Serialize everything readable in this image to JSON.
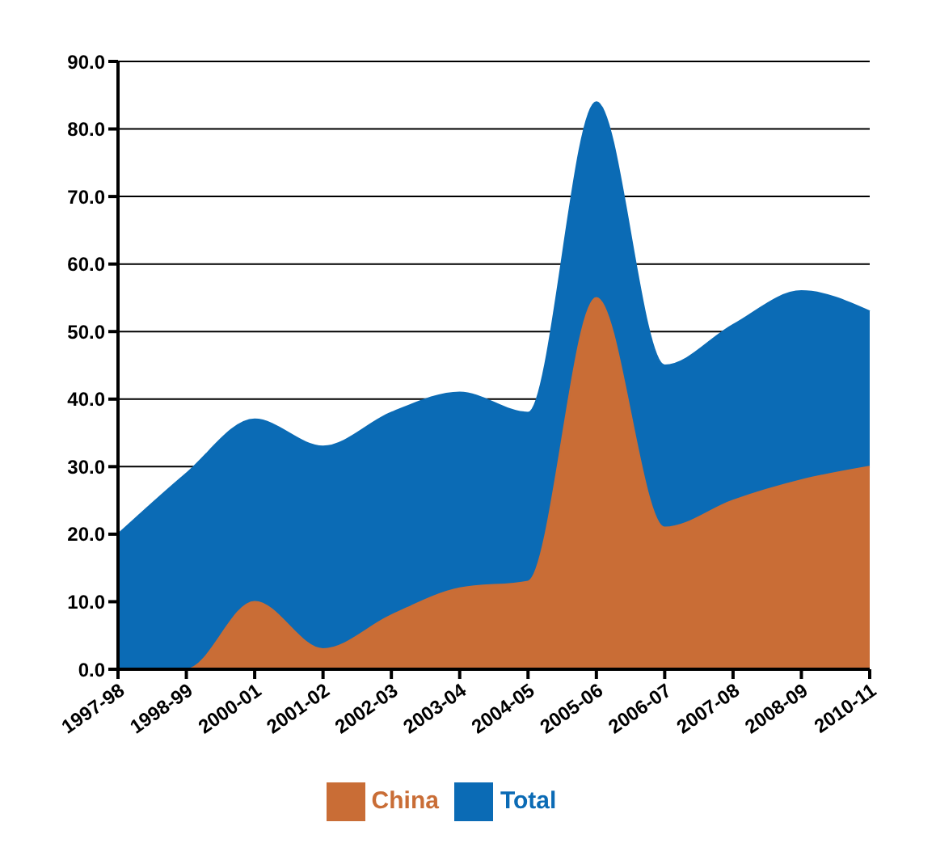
{
  "chart_data": {
    "type": "area",
    "categories": [
      "1997-98",
      "1998-99",
      "2000-01",
      "2001-02",
      "2002-03",
      "2003-04",
      "2004-05",
      "2005-06",
      "2006-07",
      "2007-08",
      "2008-09",
      "2010-11"
    ],
    "series": [
      {
        "name": "Total",
        "color": "#0b6bb5",
        "values": [
          20,
          29,
          37,
          33,
          38,
          41,
          38,
          84,
          45,
          51,
          56,
          53
        ]
      },
      {
        "name": "China",
        "color": "#c96d36",
        "values": [
          0,
          0,
          10,
          3,
          8,
          12,
          13,
          55,
          21,
          25,
          28,
          30
        ]
      }
    ],
    "ylim": [
      0,
      90
    ],
    "yticks": [
      {
        "value": 0,
        "label": "0.0"
      },
      {
        "value": 10,
        "label": "10.0"
      },
      {
        "value": 20,
        "label": "20.0"
      },
      {
        "value": 30,
        "label": "30.0"
      },
      {
        "value": 40,
        "label": "40.0"
      },
      {
        "value": 50,
        "label": "50.0"
      },
      {
        "value": 60,
        "label": "60.0"
      },
      {
        "value": 70,
        "label": "70.0"
      },
      {
        "value": 80,
        "label": "80.0"
      },
      {
        "value": 90,
        "label": "90.0"
      }
    ],
    "grid": "y",
    "legend": "bottom"
  }
}
